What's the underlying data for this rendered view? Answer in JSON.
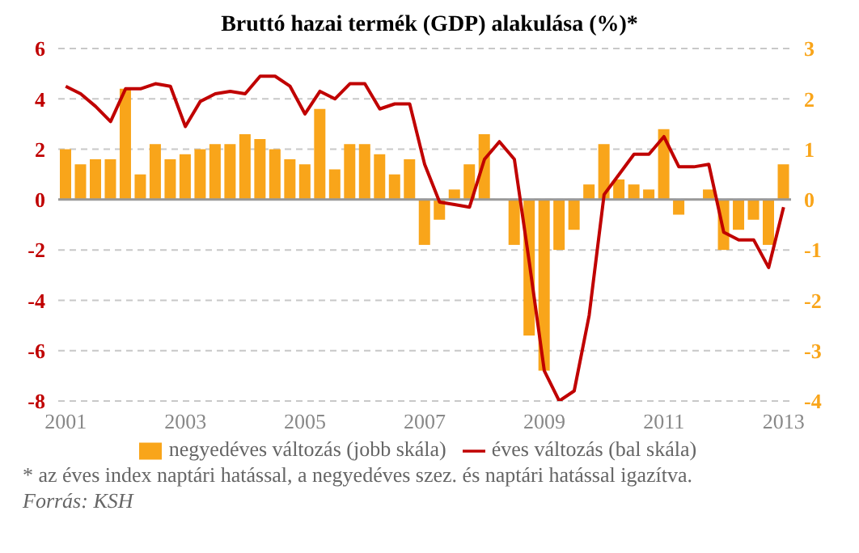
{
  "chart_data": {
    "type": "bar",
    "title": "Bruttó hazai termék (GDP) alakulása  (%)*",
    "categories": [
      "2001",
      null,
      null,
      null,
      null,
      null,
      null,
      null,
      "2003",
      null,
      null,
      null,
      null,
      null,
      null,
      null,
      "2005",
      null,
      null,
      null,
      null,
      null,
      null,
      null,
      "2007",
      null,
      null,
      null,
      null,
      null,
      null,
      null,
      "2009",
      null,
      null,
      null,
      null,
      null,
      null,
      null,
      "2011",
      null,
      null,
      null,
      null,
      null,
      null,
      null,
      "2013"
    ],
    "series": [
      {
        "name": "negyedéves változás (jobb skála)",
        "axis": "y2",
        "color": "#f9a51a",
        "values": [
          1.0,
          0.7,
          0.8,
          0.8,
          2.2,
          0.5,
          1.1,
          0.8,
          0.9,
          1.0,
          1.1,
          1.1,
          1.3,
          1.2,
          1.0,
          0.8,
          0.7,
          1.8,
          0.6,
          1.1,
          1.1,
          0.9,
          0.5,
          0.8,
          -0.9,
          -0.4,
          0.2,
          0.7,
          1.3,
          0,
          -0.9,
          -2.7,
          -3.4,
          -1.0,
          -0.6,
          0.3,
          1.1,
          0.4,
          0.3,
          0.2,
          1.4,
          -0.3,
          0,
          0.2,
          -1.0,
          -0.6,
          -0.4,
          -0.9,
          0.7
        ]
      },
      {
        "name": "éves változás (bal skála)",
        "type": "line",
        "color": "#c00000",
        "values": [
          4.5,
          4.2,
          3.7,
          3.1,
          4.4,
          4.4,
          4.6,
          4.5,
          2.9,
          3.9,
          4.2,
          4.3,
          4.2,
          4.9,
          4.9,
          4.5,
          3.4,
          4.3,
          4.0,
          4.6,
          4.6,
          3.6,
          3.8,
          3.8,
          1.4,
          -0.1,
          -0.2,
          -0.3,
          1.6,
          2.3,
          1.6,
          -2.5,
          -6.8,
          -8.0,
          -7.6,
          -4.6,
          0.2,
          1.0,
          1.8,
          1.8,
          2.5,
          1.3,
          1.3,
          1.4,
          -1.3,
          -1.6,
          -1.6,
          -2.7,
          -0.3
        ]
      }
    ],
    "ylim": [
      -8,
      6
    ],
    "yticks": [
      -8,
      -6,
      -4,
      -2,
      0,
      2,
      4,
      6
    ],
    "y2lim": [
      -4,
      3
    ],
    "y2ticks": [
      -4,
      -3,
      -2,
      -1,
      0,
      1,
      2,
      3
    ],
    "grid": "y",
    "legend": "bottom",
    "marker": "none",
    "ref_lines": [
      {
        "axis": "y",
        "value": 0,
        "color": "#999999"
      }
    ],
    "annotations": [
      "* az éves index naptári hatással, a negyedéves szez. és naptári hatással igazítva.",
      "Forrás: KSH"
    ]
  }
}
